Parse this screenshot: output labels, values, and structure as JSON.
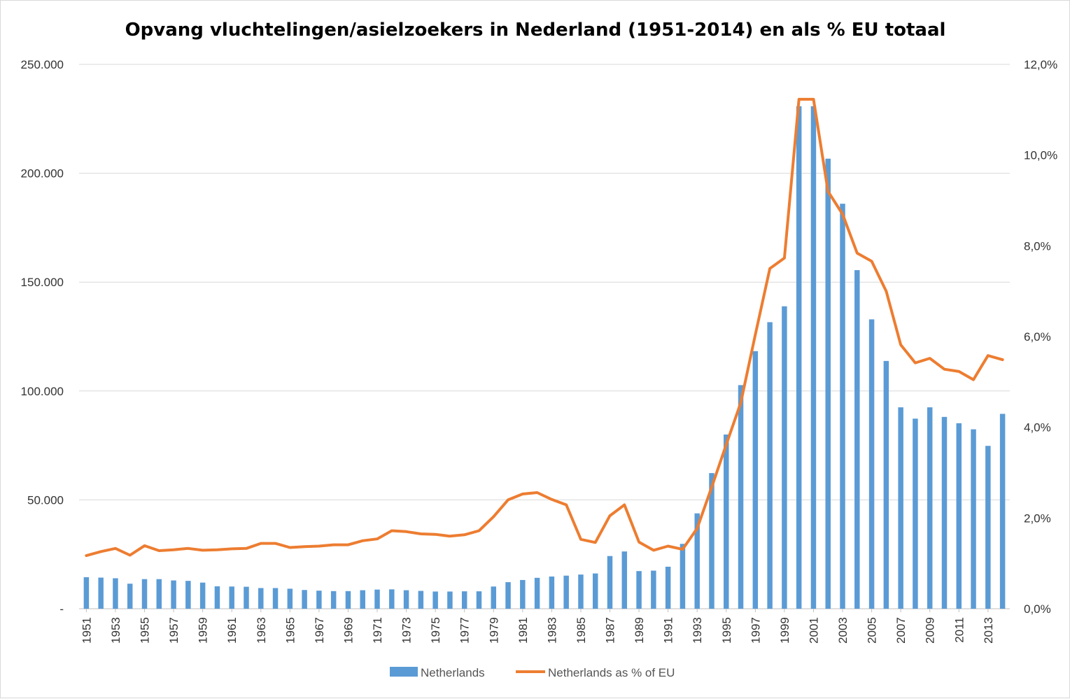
{
  "chart_data": {
    "type": "bar",
    "title": "Opvang vluchtelingen/asielzoekers  in Nederland (1951-2014) en als % EU totaal",
    "xlabel": "",
    "ylabel": "",
    "y2label": "",
    "ylim": [
      0,
      250000
    ],
    "y2lim": [
      0,
      12
    ],
    "y_ticks": [
      "-",
      "50.000",
      "100.000",
      "150.000",
      "200.000",
      "250.000"
    ],
    "y_tick_values": [
      0,
      50000,
      100000,
      150000,
      200000,
      250000
    ],
    "y2_ticks": [
      "0,0%",
      "2,0%",
      "4,0%",
      "6,0%",
      "8,0%",
      "10,0%",
      "12,0%"
    ],
    "y2_tick_values": [
      0,
      2,
      4,
      6,
      8,
      10,
      12
    ],
    "grid": true,
    "legend": "bottom",
    "categories": [
      1951,
      1952,
      1953,
      1954,
      1955,
      1956,
      1957,
      1958,
      1959,
      1960,
      1961,
      1962,
      1963,
      1964,
      1965,
      1966,
      1967,
      1968,
      1969,
      1970,
      1971,
      1972,
      1973,
      1974,
      1975,
      1976,
      1977,
      1978,
      1979,
      1980,
      1981,
      1982,
      1983,
      1984,
      1985,
      1986,
      1987,
      1988,
      1989,
      1990,
      1991,
      1992,
      1993,
      1994,
      1995,
      1996,
      1997,
      1998,
      1999,
      2000,
      2001,
      2002,
      2003,
      2004,
      2005,
      2006,
      2007,
      2008,
      2009,
      2010,
      2011,
      2012,
      2013,
      2014
    ],
    "x_tick_labels": [
      "1951",
      "1953",
      "1955",
      "1957",
      "1959",
      "1961",
      "1963",
      "1965",
      "1967",
      "1969",
      "1971",
      "1973",
      "1975",
      "1977",
      "1979",
      "1981",
      "1983",
      "1985",
      "1987",
      "1989",
      "1991",
      "1993",
      "1995",
      "1997",
      "1999",
      "2001",
      "2003",
      "2005",
      "2007",
      "2009",
      "2011",
      "2013"
    ],
    "series": [
      {
        "name": "Netherlands",
        "type": "bar",
        "axis": "left",
        "color": "#5B9BD5",
        "values": [
          14500,
          14300,
          14000,
          11500,
          13600,
          13600,
          13000,
          12800,
          12000,
          10300,
          10200,
          10100,
          9500,
          9500,
          9200,
          8600,
          8300,
          8100,
          8100,
          8500,
          8800,
          8900,
          8500,
          8200,
          7900,
          7900,
          8000,
          8000,
          10200,
          12200,
          13200,
          14200,
          14800,
          15200,
          15700,
          16200,
          24200,
          26300,
          17300,
          17500,
          19300,
          29800,
          43800,
          62300,
          80000,
          102700,
          118300,
          131600,
          138900,
          230800,
          230800,
          206700,
          186000,
          155500,
          132900,
          113800,
          92500,
          87300,
          92500,
          88100,
          85200,
          82400,
          74800,
          89500
        ]
      },
      {
        "name": "Netherlands as % of EU",
        "type": "line",
        "axis": "right",
        "color": "#ED7D31",
        "values": [
          1.17,
          1.26,
          1.33,
          1.18,
          1.39,
          1.28,
          1.3,
          1.33,
          1.29,
          1.3,
          1.32,
          1.33,
          1.44,
          1.44,
          1.35,
          1.37,
          1.38,
          1.41,
          1.41,
          1.5,
          1.54,
          1.72,
          1.7,
          1.65,
          1.64,
          1.6,
          1.63,
          1.72,
          2.03,
          2.4,
          2.53,
          2.56,
          2.41,
          2.29,
          1.53,
          1.46,
          2.05,
          2.29,
          1.47,
          1.29,
          1.38,
          1.31,
          1.77,
          2.68,
          3.62,
          4.54,
          6.04,
          7.5,
          7.73,
          11.23,
          11.23,
          9.2,
          8.7,
          7.84,
          7.66,
          7.0,
          5.82,
          5.42,
          5.52,
          5.28,
          5.23,
          5.05,
          5.58,
          5.49
        ]
      }
    ]
  }
}
